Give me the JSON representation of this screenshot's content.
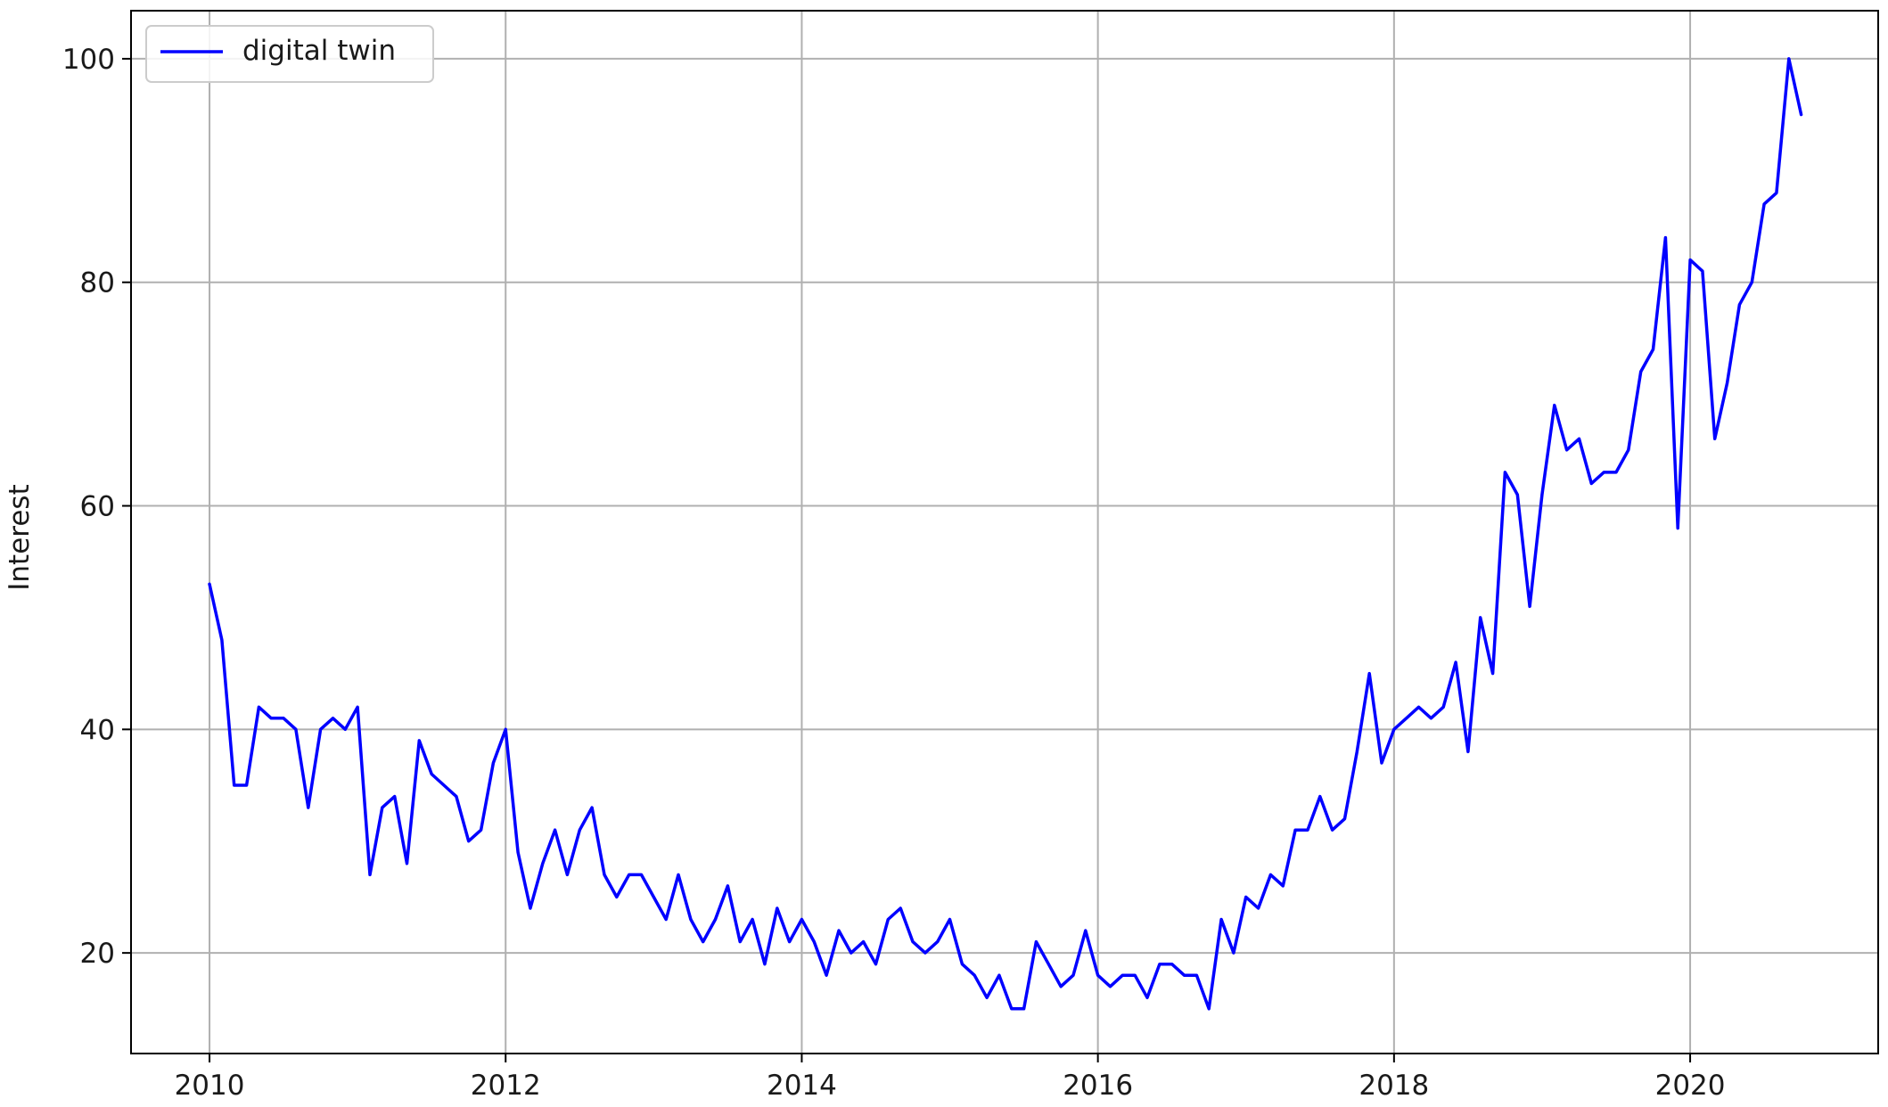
{
  "chart_data": {
    "type": "line",
    "title": "",
    "xlabel": "",
    "ylabel": "Interest",
    "xlim": [
      2009.47,
      2021.27
    ],
    "ylim": [
      11,
      104.3
    ],
    "x_ticks": [
      2010,
      2012,
      2014,
      2016,
      2018,
      2020
    ],
    "y_ticks": [
      20,
      40,
      60,
      80,
      100
    ],
    "grid": true,
    "legend": {
      "position": "top-left"
    },
    "x_start": 2010,
    "x_step": 0.0833333,
    "series": [
      {
        "name": "digital twin",
        "color": "#0000ff",
        "values": [
          53,
          48,
          35,
          35,
          42,
          41,
          41,
          40,
          33,
          40,
          41,
          40,
          42,
          27,
          33,
          34,
          28,
          39,
          36,
          35,
          34,
          30,
          31,
          37,
          40,
          29,
          24,
          28,
          31,
          27,
          31,
          33,
          27,
          25,
          27,
          27,
          25,
          23,
          27,
          23,
          21,
          23,
          26,
          21,
          23,
          19,
          24,
          21,
          23,
          21,
          18,
          22,
          20,
          21,
          19,
          23,
          24,
          21,
          20,
          21,
          23,
          19,
          18,
          16,
          18,
          15,
          15,
          21,
          19,
          17,
          18,
          22,
          18,
          17,
          18,
          18,
          16,
          19,
          19,
          18,
          18,
          15,
          23,
          20,
          25,
          24,
          27,
          26,
          31,
          31,
          34,
          31,
          32,
          38,
          45,
          37,
          40,
          41,
          42,
          41,
          42,
          46,
          38,
          50,
          45,
          63,
          61,
          51,
          61,
          69,
          65,
          66,
          62,
          63,
          63,
          65,
          72,
          74,
          84,
          58,
          82,
          81,
          66,
          71,
          78,
          80,
          87,
          88,
          100,
          95
        ]
      }
    ]
  }
}
